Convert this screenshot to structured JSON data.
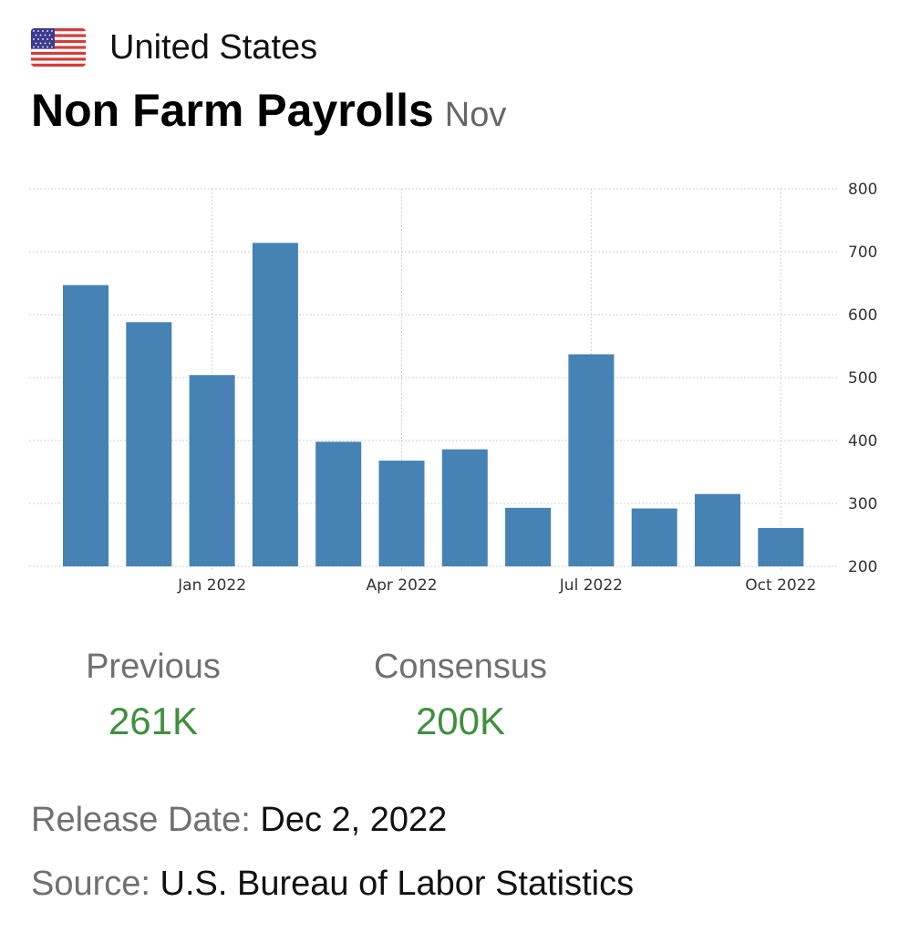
{
  "header": {
    "country": "United States",
    "title": "Non Farm Payrolls",
    "period": "Nov",
    "flag_icon": "us-flag-icon"
  },
  "chart_data": {
    "type": "bar",
    "color": "#4682b4",
    "categories": [
      "Nov 2021",
      "Dec 2021",
      "Jan 2022",
      "Feb 2022",
      "Mar 2022",
      "Apr 2022",
      "May 2022",
      "Jun 2022",
      "Jul 2022",
      "Aug 2022",
      "Sep 2022",
      "Oct 2022"
    ],
    "values": [
      647,
      588,
      504,
      714,
      398,
      368,
      386,
      293,
      537,
      292,
      315,
      261
    ],
    "x_tick_labels": [
      {
        "category": "Jan 2022",
        "label": "Jan 2022"
      },
      {
        "category": "Apr 2022",
        "label": "Apr 2022"
      },
      {
        "category": "Jul 2022",
        "label": "Jul 2022"
      },
      {
        "category": "Oct 2022",
        "label": "Oct 2022"
      }
    ],
    "y_ticks": [
      200,
      300,
      400,
      500,
      600,
      700,
      800
    ],
    "ylim": [
      200,
      800
    ],
    "y_axis_side": "right",
    "grid": true,
    "title": "",
    "xlabel": "",
    "ylabel": ""
  },
  "stats": {
    "previous": {
      "label": "Previous",
      "value": "261K"
    },
    "consensus": {
      "label": "Consensus",
      "value": "200K"
    }
  },
  "release": {
    "label": "Release Date:",
    "value": "Dec 2, 2022"
  },
  "source": {
    "label": "Source:",
    "value": "U.S. Bureau of Labor Statistics"
  }
}
